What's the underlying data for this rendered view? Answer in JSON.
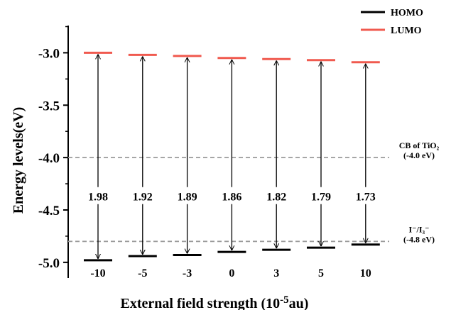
{
  "chart_data": {
    "type": "energy-level",
    "xlabel": "External field strength (10",
    "xlabel_sup": "-5",
    "xlabel_tail": "au)",
    "ylabel": "Energy levels(eV)",
    "ylim": [
      -5.15,
      -2.74
    ],
    "yticks": [
      -3.0,
      -3.5,
      -4.0,
      -4.5,
      -5.0
    ],
    "ytick_labels": [
      "-3.0",
      "-3.5",
      "-4.0",
      "-4.5",
      "-5.0"
    ],
    "categories": [
      "-10",
      "-5",
      "-3",
      "0",
      "3",
      "5",
      "10"
    ],
    "series": [
      {
        "name": "HOMO",
        "color": "#000000",
        "values": [
          -4.98,
          -4.94,
          -4.93,
          -4.9,
          -4.88,
          -4.86,
          -4.83
        ]
      },
      {
        "name": "LUMO",
        "color": "#f05a4f",
        "values": [
          -3.0,
          -3.02,
          -3.03,
          -3.05,
          -3.06,
          -3.07,
          -3.09
        ]
      }
    ],
    "gaps": [
      "1.98",
      "1.92",
      "1.89",
      "1.86",
      "1.82",
      "1.79",
      "1.73"
    ],
    "reference_lines": [
      {
        "value": -4.0,
        "label_line1": "CB of TiO₂",
        "label_line2": "(-4.0 eV)",
        "color": "#9a9a9a"
      },
      {
        "value": -4.8,
        "label_line1": "I⁻/I₃⁻",
        "label_line2": "(-4.8 eV)",
        "color": "#9a9a9a"
      }
    ],
    "legend_position": "top-right",
    "grid": false
  }
}
